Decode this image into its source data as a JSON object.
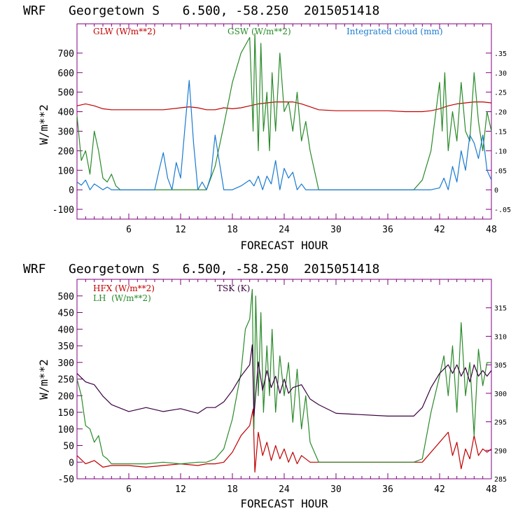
{
  "colors": {
    "frame": "#800080",
    "red": "#c00000",
    "green": "#2a8a2a",
    "blue": "#1a7ad0",
    "purple": "#3a0040"
  },
  "chart_data": [
    {
      "type": "line",
      "title": "WRF   Georgetown S   6.500, -58.250  2015051418",
      "xlabel": "FORECAST HOUR",
      "ylabel": "W/m**2",
      "xlim": [
        0,
        48
      ],
      "ylim": [
        -150,
        850
      ],
      "y2lim": [
        -0.075,
        0.425
      ],
      "xticks": [
        "6",
        "12",
        "18",
        "24",
        "30",
        "36",
        "42",
        "48"
      ],
      "yticks": [
        "-100",
        "0",
        "100",
        "200",
        "300",
        "400",
        "500",
        "600",
        "700"
      ],
      "y2ticks": [
        "-.05",
        "0",
        ".05",
        ".10",
        ".15",
        ".20",
        ".25",
        ".30",
        ".35"
      ],
      "legend": [
        "GLW (W/m**2)",
        "GSW (W/m**2)",
        "Integrated cloud (mm)"
      ],
      "series": [
        {
          "name": "GLW (W/m**2)",
          "axis": "left",
          "color": "#c00000",
          "x": [
            0,
            1,
            2,
            3,
            4,
            5,
            6,
            8,
            10,
            12,
            13,
            14,
            15,
            16,
            17,
            18,
            19,
            20,
            21,
            22,
            23,
            24,
            25,
            26,
            27,
            28,
            30,
            32,
            34,
            36,
            38,
            40,
            41,
            42,
            43,
            44,
            45,
            46,
            47,
            48
          ],
          "y": [
            430,
            440,
            430,
            415,
            410,
            410,
            410,
            410,
            410,
            420,
            425,
            420,
            410,
            410,
            420,
            415,
            420,
            430,
            440,
            445,
            450,
            450,
            450,
            440,
            425,
            410,
            405,
            405,
            405,
            405,
            400,
            400,
            405,
            415,
            430,
            440,
            445,
            450,
            450,
            445
          ]
        },
        {
          "name": "GSW (W/m**2)",
          "axis": "left",
          "color": "#2a8a2a",
          "x": [
            0,
            0.5,
            1,
            1.5,
            2,
            2.5,
            3,
            3.5,
            4,
            4.5,
            5,
            15,
            16,
            17,
            18,
            19,
            20,
            20.4,
            20.6,
            21,
            21.3,
            21.6,
            22,
            22.3,
            22.6,
            23,
            23.5,
            24,
            24.5,
            25,
            25.5,
            26,
            26.5,
            27,
            28,
            39,
            40,
            41,
            42,
            42.3,
            42.6,
            43,
            43.5,
            44,
            44.5,
            45,
            45.5,
            46,
            46.5,
            47,
            47.5,
            48
          ],
          "y": [
            380,
            150,
            200,
            80,
            300,
            200,
            60,
            40,
            80,
            20,
            0,
            0,
            120,
            330,
            550,
            700,
            780,
            300,
            800,
            200,
            750,
            300,
            500,
            200,
            600,
            300,
            700,
            400,
            450,
            300,
            500,
            250,
            350,
            200,
            0,
            0,
            50,
            200,
            550,
            300,
            600,
            200,
            400,
            250,
            550,
            300,
            250,
            600,
            350,
            200,
            400,
            300
          ]
        },
        {
          "name": "Integrated cloud (mm)",
          "axis": "right",
          "color": "#1a7ad0",
          "x": [
            0,
            0.5,
            1,
            1.5,
            2,
            2.5,
            3,
            3.5,
            4,
            9,
            9.5,
            10,
            10.5,
            11,
            11.5,
            12,
            12.5,
            13,
            13.5,
            14,
            14.5,
            15,
            15.5,
            16,
            16.5,
            17,
            17.5,
            18,
            19,
            20,
            20.5,
            21,
            21.5,
            22,
            22.5,
            23,
            23.5,
            24,
            24.5,
            25,
            25.5,
            26,
            26.5,
            27,
            40,
            41,
            42,
            42.5,
            43,
            43.5,
            44,
            44.5,
            45,
            45.5,
            46,
            46.5,
            47,
            47.5,
            48
          ],
          "y": [
            0.02,
            0.012,
            0.025,
            0.0,
            0.015,
            0.008,
            0.0,
            0.007,
            0.0,
            0.0,
            0.05,
            0.095,
            0.03,
            0.0,
            0.07,
            0.03,
            0.16,
            0.28,
            0.12,
            0.0,
            0.02,
            0.0,
            0.035,
            0.14,
            0.07,
            0.0,
            0.0,
            0.0,
            0.01,
            0.025,
            0.01,
            0.035,
            0.0,
            0.035,
            0.015,
            0.075,
            0.0,
            0.055,
            0.03,
            0.045,
            0.0,
            0.015,
            0.0,
            0.0,
            0.0,
            0.0,
            0.005,
            0.03,
            0.0,
            0.06,
            0.02,
            0.1,
            0.05,
            0.14,
            0.12,
            0.08,
            0.14,
            0.05,
            0.025
          ]
        }
      ]
    },
    {
      "type": "line",
      "title": "WRF   Georgetown S   6.500, -58.250  2015051418",
      "xlabel": "FORECAST HOUR",
      "ylabel": "W/m**2",
      "xlim": [
        0,
        48
      ],
      "ylim": [
        -50,
        550
      ],
      "y2lim": [
        285,
        320
      ],
      "xticks": [
        "6",
        "12",
        "18",
        "24",
        "30",
        "36",
        "42",
        "48"
      ],
      "yticks": [
        "-50",
        "0",
        "50",
        "100",
        "150",
        "200",
        "250",
        "300",
        "350",
        "400",
        "450",
        "500"
      ],
      "y2ticks": [
        "285",
        "290",
        "295",
        "300",
        "305",
        "310",
        "315"
      ],
      "legend": [
        "HFX (W/m**2)",
        "LH  (W/m**2)",
        "TSK (K)"
      ],
      "series": [
        {
          "name": "HFX (W/m**2)",
          "axis": "left",
          "color": "#c00000",
          "x": [
            0,
            1,
            2,
            3,
            4,
            6,
            8,
            10,
            12,
            14,
            15,
            16,
            17,
            18,
            19,
            20,
            20.4,
            20.6,
            21,
            21.5,
            22,
            22.5,
            23,
            23.5,
            24,
            24.5,
            25,
            25.5,
            26,
            27,
            28,
            30,
            36,
            39,
            40,
            42,
            43,
            43.5,
            44,
            44.5,
            45,
            45.5,
            46,
            46.5,
            47,
            47.5,
            48
          ],
          "y": [
            20,
            -5,
            5,
            -15,
            -10,
            -10,
            -15,
            -10,
            -5,
            -10,
            -5,
            -5,
            0,
            30,
            80,
            110,
            160,
            -30,
            90,
            20,
            60,
            5,
            50,
            10,
            40,
            0,
            30,
            -5,
            20,
            0,
            0,
            0,
            0,
            0,
            0,
            60,
            90,
            20,
            60,
            -20,
            40,
            10,
            80,
            20,
            40,
            30,
            40
          ]
        },
        {
          "name": "LH  (W/m**2)",
          "axis": "left",
          "color": "#2a8a2a",
          "x": [
            0,
            0.5,
            1,
            1.5,
            2,
            2.5,
            3,
            3.5,
            4,
            5,
            6,
            8,
            10,
            12,
            14,
            15,
            16,
            17,
            18,
            19,
            19.5,
            20,
            20.3,
            20.5,
            20.7,
            21,
            21.3,
            21.6,
            22,
            22.3,
            22.6,
            23,
            23.5,
            24,
            24.5,
            25,
            25.5,
            26,
            26.5,
            27,
            28,
            30,
            36,
            39,
            40,
            41,
            42,
            42.5,
            43,
            43.5,
            44,
            44.5,
            45,
            45.5,
            46,
            46.5,
            47,
            47.5,
            48
          ],
          "y": [
            250,
            200,
            110,
            100,
            60,
            80,
            20,
            10,
            -5,
            -5,
            -5,
            -5,
            0,
            -5,
            0,
            0,
            10,
            40,
            130,
            270,
            400,
            430,
            520,
            100,
            500,
            200,
            450,
            150,
            350,
            200,
            400,
            150,
            320,
            200,
            300,
            120,
            280,
            100,
            200,
            60,
            0,
            0,
            0,
            0,
            10,
            150,
            260,
            320,
            200,
            350,
            150,
            420,
            200,
            300,
            80,
            340,
            230,
            300,
            300
          ]
        },
        {
          "name": "TSK (K)",
          "axis": "right",
          "color": "#3a0040",
          "x": [
            0,
            1,
            2,
            3,
            4,
            6,
            8,
            10,
            12,
            14,
            15,
            16,
            17,
            18,
            19,
            20,
            20.3,
            20.5,
            21,
            21.5,
            22,
            22.5,
            23,
            23.5,
            24,
            24.5,
            25,
            26,
            27,
            28,
            30,
            36,
            39,
            40,
            41,
            42,
            43,
            43.5,
            44,
            44.5,
            45,
            45.5,
            46,
            46.5,
            47,
            47.5,
            48
          ],
          "y": [
            303.5,
            302,
            301.5,
            299.5,
            298,
            296.8,
            297.5,
            296.8,
            297.3,
            296.5,
            297.5,
            297.5,
            298.5,
            300.5,
            303,
            305,
            308.5,
            296,
            305.5,
            300.5,
            304,
            301,
            303,
            300,
            302.5,
            300,
            301,
            301.5,
            299,
            298,
            296.5,
            296,
            296,
            297.5,
            301,
            303.5,
            305,
            303.5,
            305,
            303,
            304.5,
            302,
            305,
            303,
            304,
            303,
            304
          ]
        }
      ]
    }
  ]
}
